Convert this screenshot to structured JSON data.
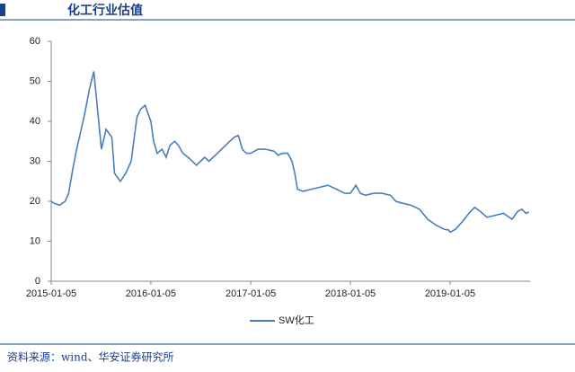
{
  "chart_data": {
    "type": "line",
    "title": "化工行业估值",
    "source": "资料来源：wind、华安证券研究所",
    "x": [
      "2015-01-05",
      "2015-01-15",
      "2015-02-05",
      "2015-02-25",
      "2015-03-10",
      "2015-03-25",
      "2015-04-08",
      "2015-04-25",
      "2015-05-08",
      "2015-05-25",
      "2015-06-10",
      "2015-06-25",
      "2015-07-08",
      "2015-07-25",
      "2015-08-15",
      "2015-08-25",
      "2015-09-15",
      "2015-10-05",
      "2015-10-25",
      "2015-11-15",
      "2015-11-28",
      "2015-12-15",
      "2015-12-25",
      "2016-01-05",
      "2016-01-15",
      "2016-01-28",
      "2016-02-15",
      "2016-03-01",
      "2016-03-15",
      "2016-04-01",
      "2016-04-15",
      "2016-05-01",
      "2016-05-20",
      "2016-06-05",
      "2016-06-20",
      "2016-07-05",
      "2016-07-20",
      "2016-08-05",
      "2016-08-20",
      "2016-09-05",
      "2016-09-20",
      "2016-10-05",
      "2016-10-20",
      "2016-11-05",
      "2016-11-20",
      "2016-12-05",
      "2016-12-20",
      "2017-01-05",
      "2017-02-01",
      "2017-03-01",
      "2017-04-01",
      "2017-04-15",
      "2017-05-01",
      "2017-05-20",
      "2017-06-05",
      "2017-06-15",
      "2017-06-25",
      "2017-07-15",
      "2017-08-15",
      "2017-09-15",
      "2017-10-15",
      "2017-11-15",
      "2017-12-15",
      "2018-01-05",
      "2018-01-25",
      "2018-02-10",
      "2018-03-01",
      "2018-04-01",
      "2018-05-01",
      "2018-06-01",
      "2018-06-20",
      "2018-07-15",
      "2018-08-15",
      "2018-09-15",
      "2018-10-15",
      "2018-11-15",
      "2018-12-15",
      "2018-12-31",
      "2019-01-05",
      "2019-01-25",
      "2019-02-20",
      "2019-03-15",
      "2019-04-05",
      "2019-04-25",
      "2019-05-20",
      "2019-06-20",
      "2019-07-20",
      "2019-08-20",
      "2019-09-10",
      "2019-09-25",
      "2019-10-10",
      "2019-10-20"
    ],
    "series": [
      {
        "name": "SW化工",
        "color": "#4a7ebb",
        "values": [
          20,
          19.5,
          19,
          20,
          22,
          28,
          33,
          38,
          42,
          48,
          52.5,
          42,
          33,
          38,
          36,
          27,
          25,
          27,
          30,
          41,
          43,
          44,
          42,
          40,
          35,
          32,
          33,
          31,
          34,
          35,
          34,
          32,
          31,
          30,
          29,
          30,
          31,
          30,
          31,
          32,
          33,
          34,
          35,
          36,
          36.5,
          33,
          32,
          32,
          33,
          33,
          32.5,
          31.5,
          32,
          32,
          30,
          27,
          23,
          22.5,
          23,
          23.5,
          24,
          23,
          22,
          22,
          24,
          22,
          21.5,
          22,
          22,
          21.5,
          20,
          19.5,
          19,
          18,
          15.5,
          14,
          13,
          12.8,
          12.3,
          13,
          15,
          17,
          18.5,
          17.5,
          16,
          16.5,
          17,
          15.5,
          17.5,
          18,
          17,
          17.3
        ]
      }
    ],
    "xlim": [
      "2015-01-05",
      "2019-10-25"
    ],
    "xticks": [
      "2015-01-05",
      "2016-01-05",
      "2017-01-05",
      "2018-01-05",
      "2019-01-05"
    ],
    "ylim": [
      0,
      60
    ],
    "yticks": [
      0,
      10,
      20,
      30,
      40,
      50,
      60
    ],
    "grid": false
  }
}
